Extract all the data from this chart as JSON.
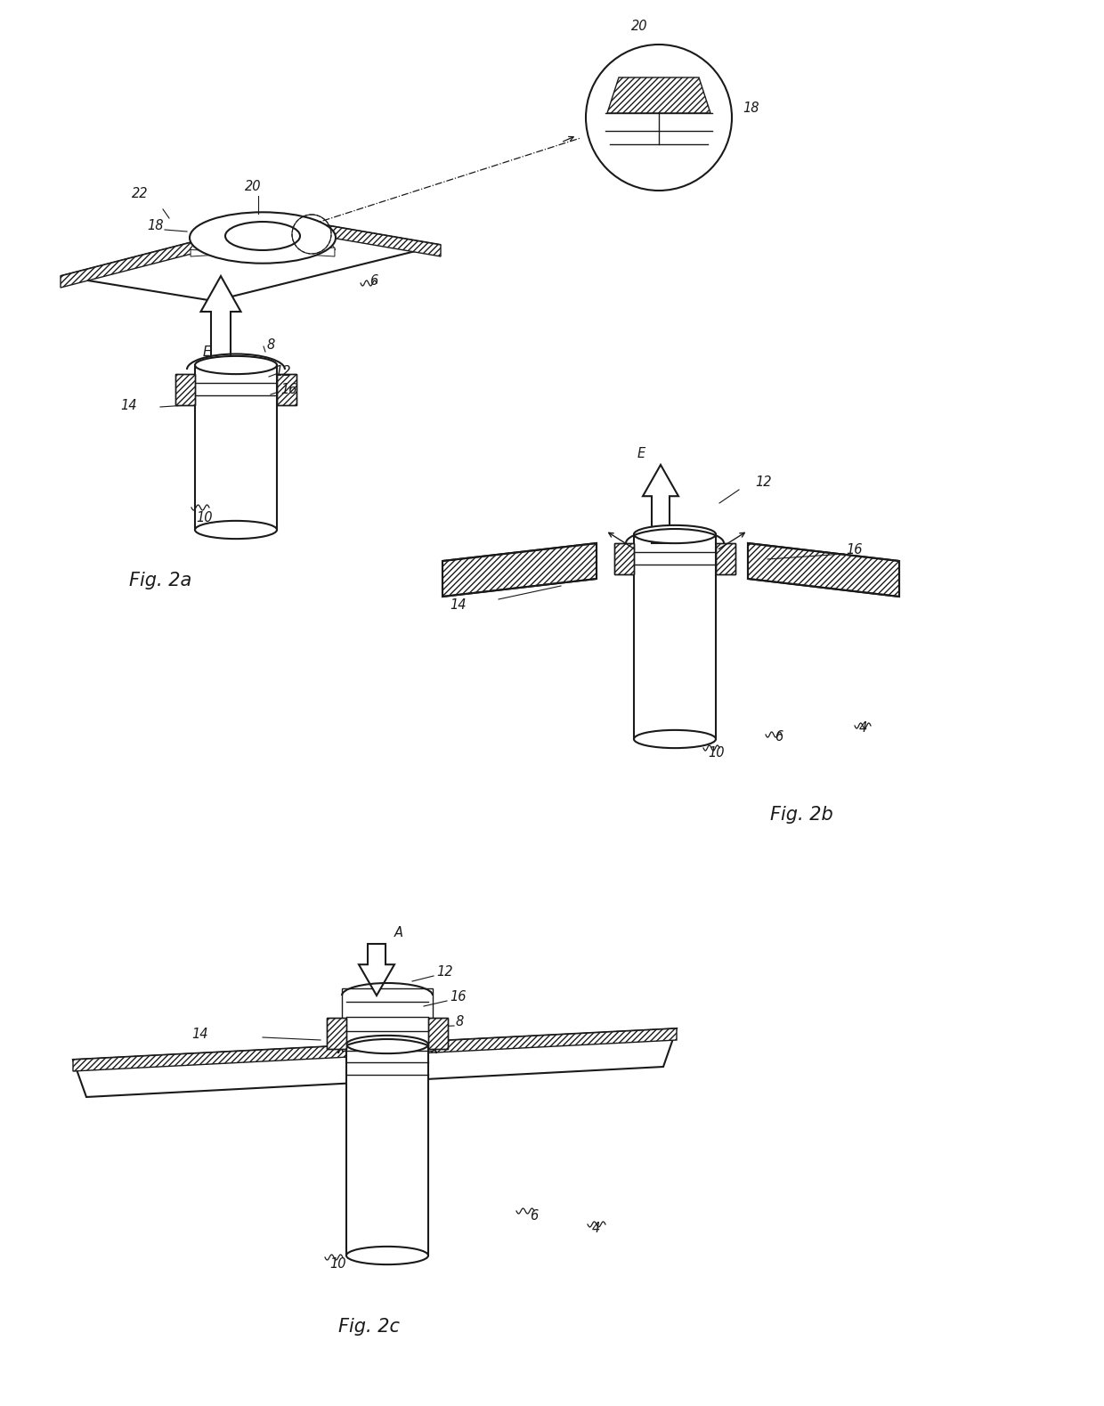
{
  "bg_color": "#ffffff",
  "line_color": "#1a1a1a",
  "fig_width": 12.4,
  "fig_height": 15.79,
  "lw_main": 1.5,
  "lw_thin": 1.0,
  "lw_thick": 2.0,
  "label_fontsize": 10.5,
  "fig_label_fontsize": 15,
  "fig2a_label": "Fig. 2a",
  "fig2b_label": "Fig. 2b",
  "fig2c_label": "Fig. 2c"
}
